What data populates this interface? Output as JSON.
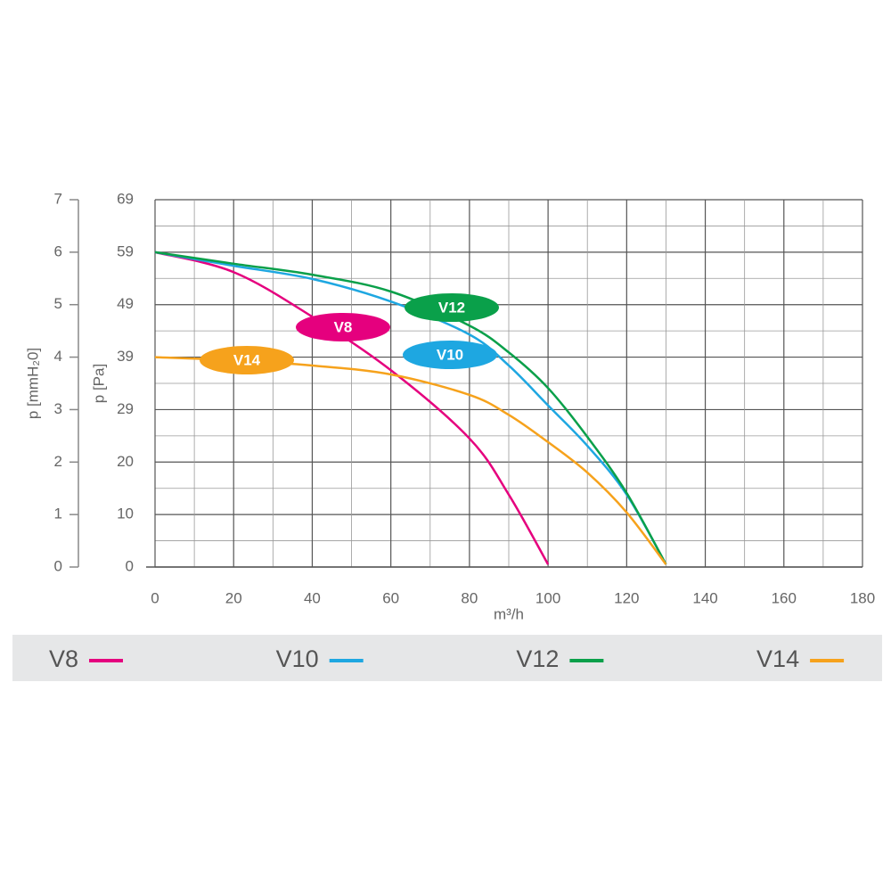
{
  "chart_data": {
    "type": "line",
    "x_label": "m³/h",
    "y_label": "p [mmH₂0]",
    "y2_label": "p [Pa]",
    "x": [
      0,
      20,
      40,
      60,
      80,
      90,
      100,
      110,
      120,
      130
    ],
    "series": [
      {
        "name": "V8",
        "color": "#e5007e",
        "values": [
          6.0,
          5.62,
          4.77,
          3.75,
          2.45,
          1.38,
          0.05,
          null,
          null,
          null
        ]
      },
      {
        "name": "V10",
        "color": "#1ea7e1",
        "values": [
          6.0,
          5.74,
          5.49,
          5.06,
          4.43,
          3.84,
          3.08,
          2.31,
          1.38,
          0.05
        ]
      },
      {
        "name": "V12",
        "color": "#0aa04a",
        "values": [
          6.0,
          5.78,
          5.57,
          5.25,
          4.6,
          4.09,
          3.41,
          2.48,
          1.41,
          0.05
        ]
      },
      {
        "name": "V14",
        "color": "#f6a21c",
        "values": [
          4.0,
          3.94,
          3.84,
          3.67,
          3.28,
          2.9,
          2.38,
          1.8,
          1.04,
          0.05
        ]
      }
    ],
    "xlim": [
      0,
      180
    ],
    "xticks": [
      0,
      20,
      40,
      60,
      80,
      100,
      120,
      140,
      160,
      180
    ],
    "ylim": [
      0,
      7
    ],
    "yticks": [
      0,
      1,
      2,
      3,
      4,
      5,
      6,
      7
    ],
    "y2lim": [
      0,
      68.67
    ],
    "y2ticks": [
      0,
      {
        "value": 9.81,
        "label": "10"
      },
      {
        "value": 19.62,
        "label": "20"
      },
      {
        "value": 29.43,
        "label": "29"
      },
      {
        "value": 39.24,
        "label": "39"
      },
      {
        "value": 49.05,
        "label": "49"
      },
      {
        "value": 58.86,
        "label": "59"
      },
      {
        "value": 68.67,
        "label": "69"
      }
    ],
    "grid": true,
    "legend": "bottom"
  }
}
